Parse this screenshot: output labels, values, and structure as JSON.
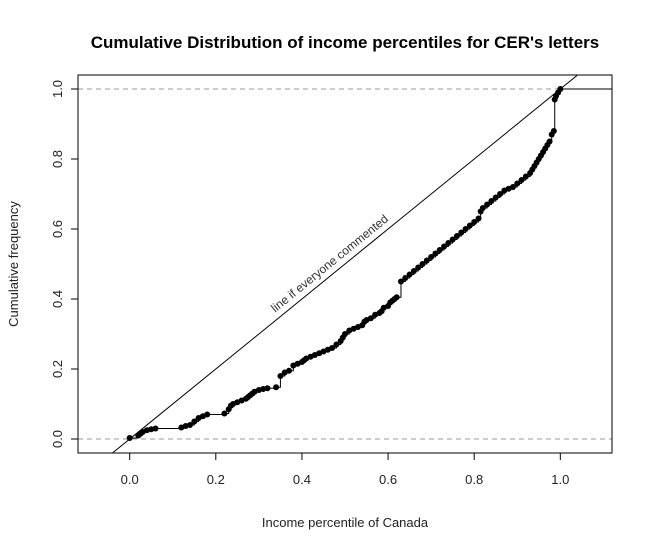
{
  "chart_data": {
    "type": "line",
    "title": "Cumulative Distribution of income percentiles for CER's letters",
    "xlabel": "Income percentile of Canada",
    "ylabel": "Cumulative frequency",
    "xlim": [
      -0.12,
      1.12
    ],
    "ylim": [
      -0.04,
      1.04
    ],
    "xticks": [
      0.0,
      0.2,
      0.4,
      0.6,
      0.8,
      1.0
    ],
    "yticks": [
      0.0,
      0.2,
      0.4,
      0.6,
      0.8,
      1.0
    ],
    "xtick_labels": [
      "0.0",
      "0.2",
      "0.4",
      "0.6",
      "0.8",
      "1.0"
    ],
    "ytick_labels": [
      "0.0",
      "0.2",
      "0.4",
      "0.6",
      "0.8",
      "1.0"
    ],
    "reference_lines": [
      {
        "orientation": "horizontal",
        "y": 0.0,
        "style": "dashed",
        "color": "#999999"
      },
      {
        "orientation": "horizontal",
        "y": 1.0,
        "style": "dashed",
        "color": "#999999"
      }
    ],
    "diagonal": {
      "slope": 1,
      "intercept": 0,
      "label": "line if everyone commented"
    },
    "series": [
      {
        "points": [
          [
            0.0,
            0.003
          ],
          [
            0.02,
            0.01
          ],
          [
            0.025,
            0.015
          ],
          [
            0.03,
            0.02
          ],
          [
            0.04,
            0.025
          ],
          [
            0.05,
            0.028
          ],
          [
            0.06,
            0.03
          ],
          [
            0.12,
            0.033
          ],
          [
            0.13,
            0.037
          ],
          [
            0.14,
            0.04
          ],
          [
            0.15,
            0.05
          ],
          [
            0.16,
            0.06
          ],
          [
            0.17,
            0.065
          ],
          [
            0.18,
            0.07
          ],
          [
            0.22,
            0.073
          ],
          [
            0.23,
            0.085
          ],
          [
            0.235,
            0.095
          ],
          [
            0.24,
            0.1
          ],
          [
            0.25,
            0.105
          ],
          [
            0.26,
            0.11
          ],
          [
            0.27,
            0.115
          ],
          [
            0.275,
            0.12
          ],
          [
            0.28,
            0.125
          ],
          [
            0.285,
            0.13
          ],
          [
            0.29,
            0.135
          ],
          [
            0.3,
            0.14
          ],
          [
            0.31,
            0.143
          ],
          [
            0.32,
            0.145
          ],
          [
            0.34,
            0.148
          ],
          [
            0.35,
            0.18
          ],
          [
            0.36,
            0.19
          ],
          [
            0.37,
            0.195
          ],
          [
            0.38,
            0.21
          ],
          [
            0.39,
            0.215
          ],
          [
            0.4,
            0.22
          ],
          [
            0.405,
            0.225
          ],
          [
            0.41,
            0.23
          ],
          [
            0.42,
            0.235
          ],
          [
            0.43,
            0.24
          ],
          [
            0.44,
            0.245
          ],
          [
            0.45,
            0.25
          ],
          [
            0.46,
            0.255
          ],
          [
            0.47,
            0.26
          ],
          [
            0.48,
            0.27
          ],
          [
            0.49,
            0.28
          ],
          [
            0.495,
            0.29
          ],
          [
            0.5,
            0.3
          ],
          [
            0.51,
            0.31
          ],
          [
            0.52,
            0.315
          ],
          [
            0.53,
            0.32
          ],
          [
            0.54,
            0.325
          ],
          [
            0.545,
            0.335
          ],
          [
            0.55,
            0.34
          ],
          [
            0.56,
            0.345
          ],
          [
            0.57,
            0.355
          ],
          [
            0.58,
            0.36
          ],
          [
            0.585,
            0.365
          ],
          [
            0.59,
            0.375
          ],
          [
            0.6,
            0.38
          ],
          [
            0.605,
            0.39
          ],
          [
            0.61,
            0.395
          ],
          [
            0.615,
            0.4
          ],
          [
            0.62,
            0.405
          ],
          [
            0.63,
            0.45
          ],
          [
            0.64,
            0.46
          ],
          [
            0.65,
            0.47
          ],
          [
            0.66,
            0.48
          ],
          [
            0.67,
            0.49
          ],
          [
            0.68,
            0.5
          ],
          [
            0.69,
            0.51
          ],
          [
            0.7,
            0.52
          ],
          [
            0.71,
            0.53
          ],
          [
            0.72,
            0.54
          ],
          [
            0.73,
            0.55
          ],
          [
            0.74,
            0.56
          ],
          [
            0.75,
            0.57
          ],
          [
            0.76,
            0.58
          ],
          [
            0.77,
            0.59
          ],
          [
            0.78,
            0.6
          ],
          [
            0.79,
            0.61
          ],
          [
            0.8,
            0.62
          ],
          [
            0.81,
            0.63
          ],
          [
            0.815,
            0.65
          ],
          [
            0.82,
            0.66
          ],
          [
            0.83,
            0.67
          ],
          [
            0.84,
            0.68
          ],
          [
            0.85,
            0.69
          ],
          [
            0.86,
            0.7
          ],
          [
            0.87,
            0.71
          ],
          [
            0.88,
            0.715
          ],
          [
            0.89,
            0.72
          ],
          [
            0.9,
            0.73
          ],
          [
            0.91,
            0.74
          ],
          [
            0.92,
            0.75
          ],
          [
            0.93,
            0.76
          ],
          [
            0.935,
            0.77
          ],
          [
            0.94,
            0.78
          ],
          [
            0.945,
            0.79
          ],
          [
            0.95,
            0.8
          ],
          [
            0.955,
            0.81
          ],
          [
            0.96,
            0.82
          ],
          [
            0.965,
            0.83
          ],
          [
            0.97,
            0.84
          ],
          [
            0.975,
            0.85
          ],
          [
            0.98,
            0.87
          ],
          [
            0.985,
            0.88
          ],
          [
            0.987,
            0.97
          ],
          [
            0.99,
            0.98
          ],
          [
            0.995,
            0.99
          ],
          [
            1.0,
            1.0
          ]
        ]
      }
    ],
    "grid": false
  }
}
